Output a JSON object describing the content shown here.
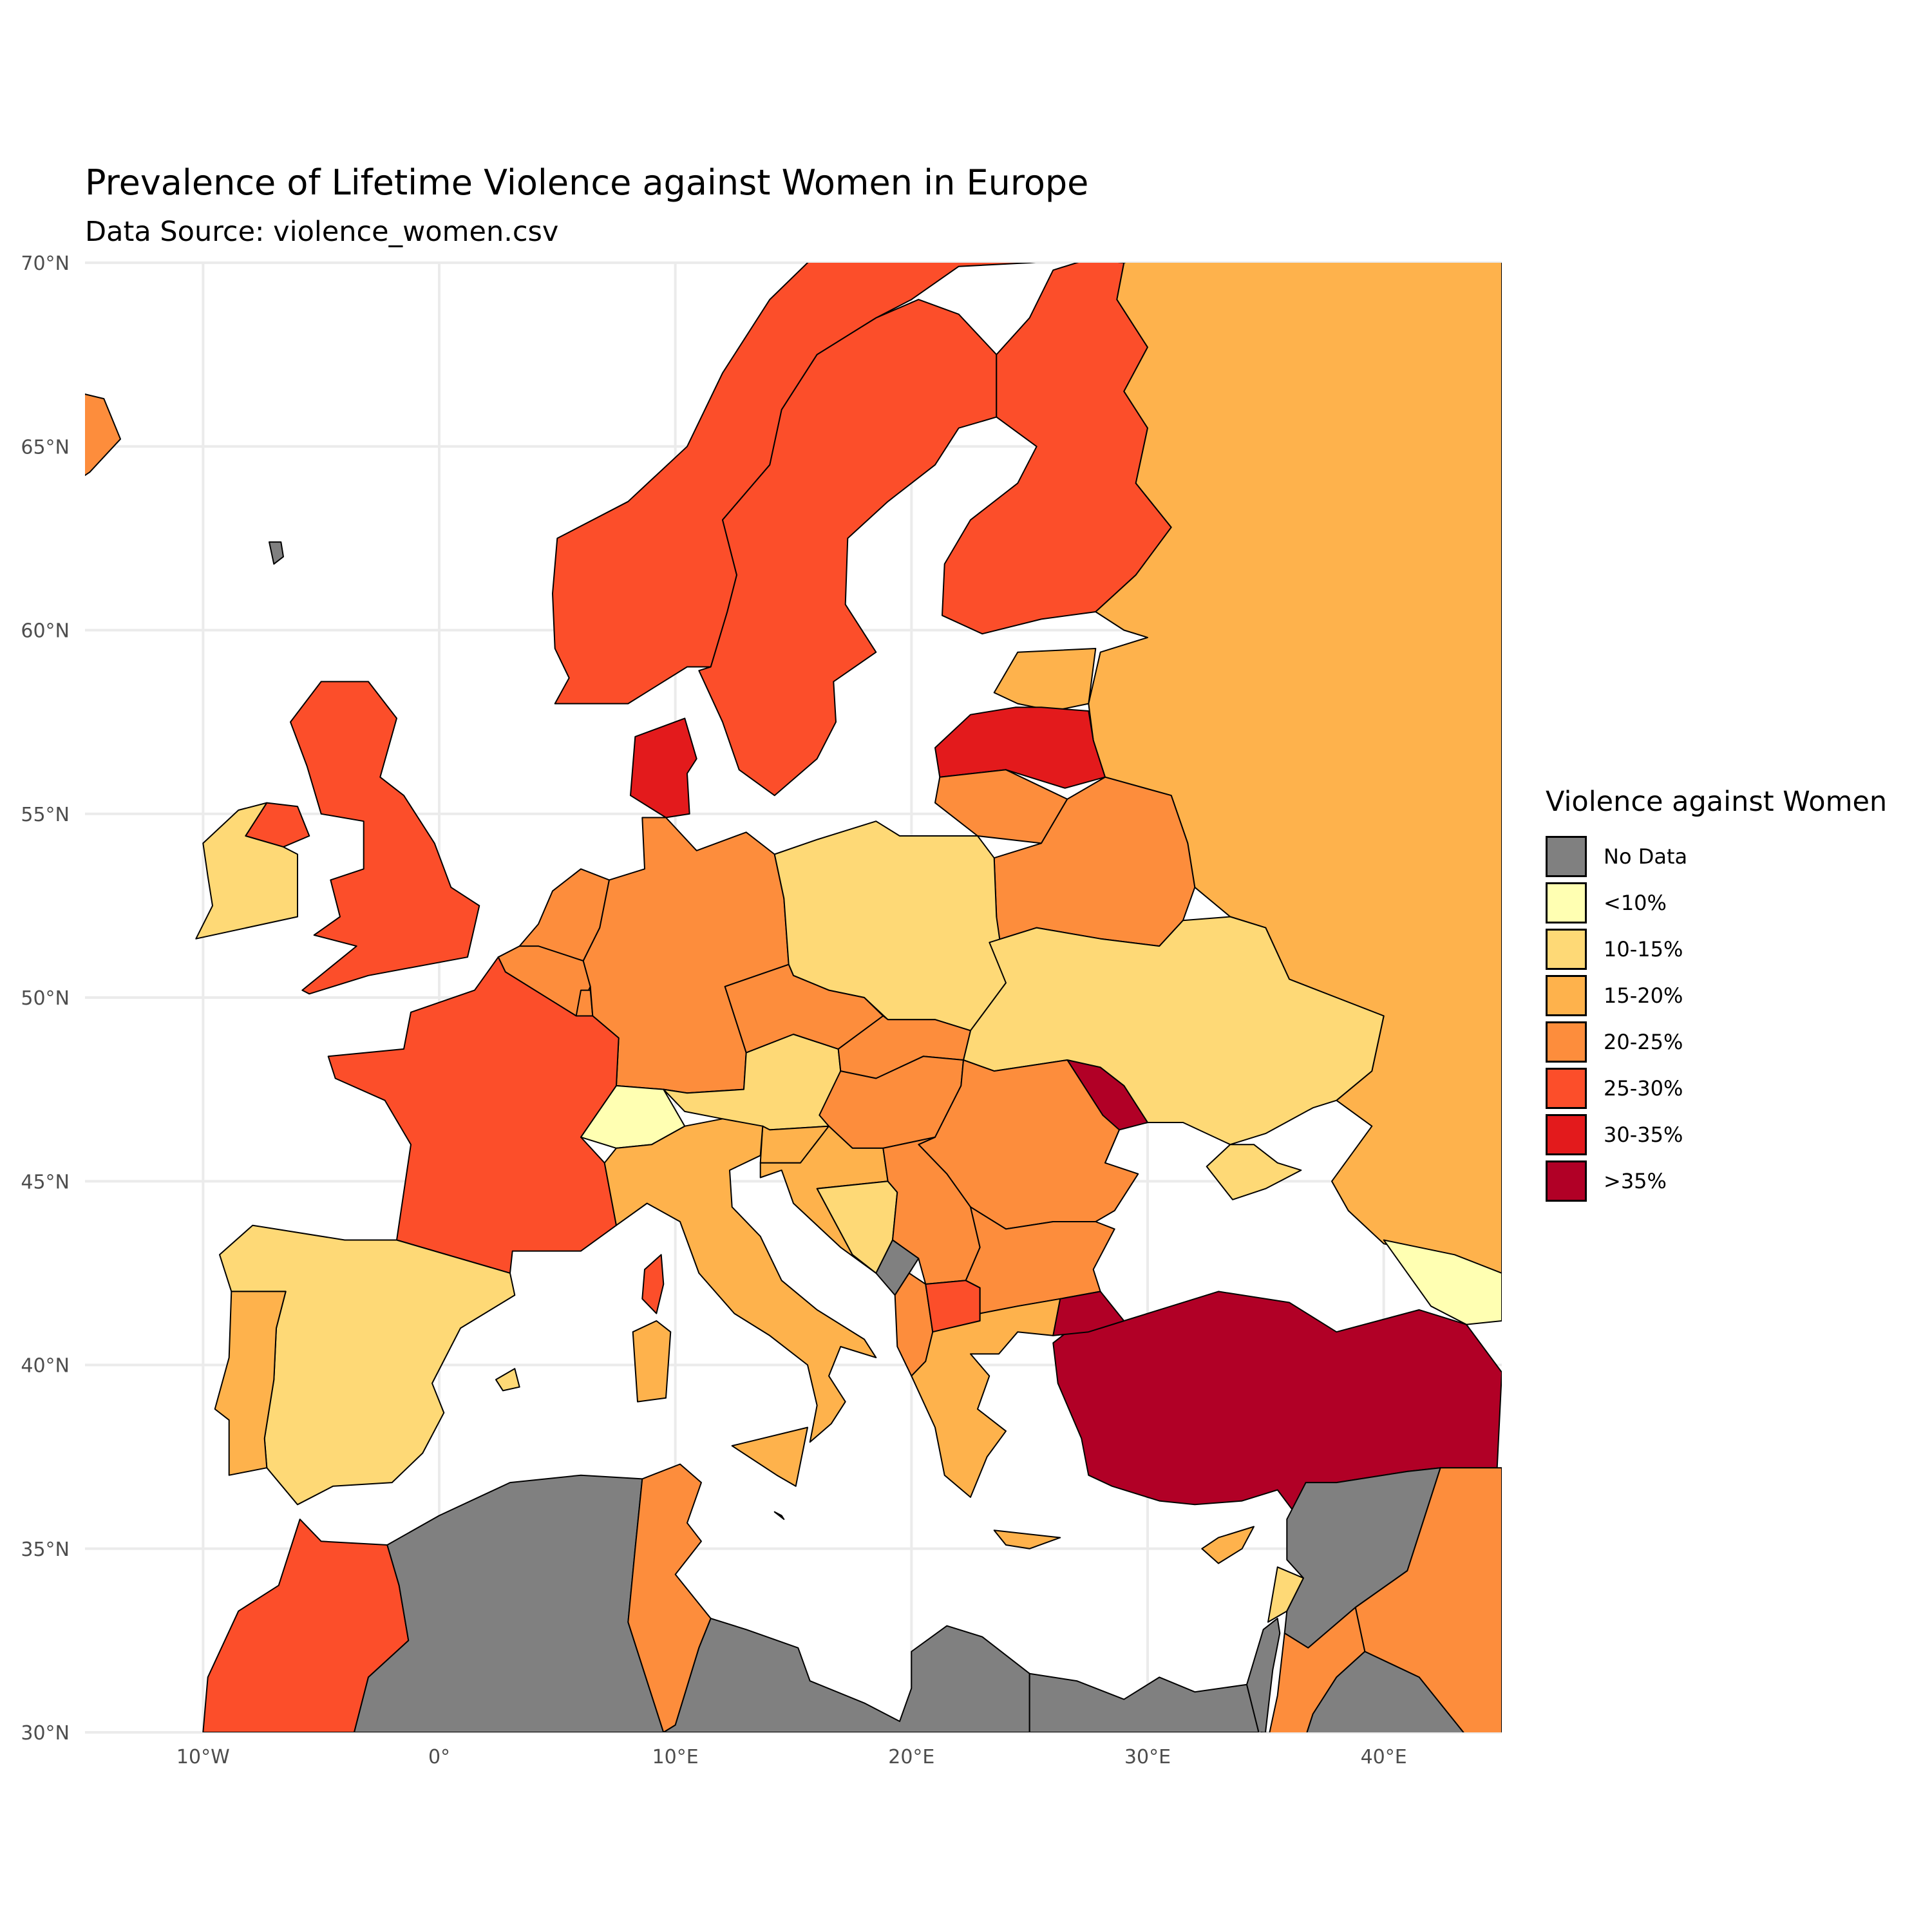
{
  "title": "Prevalence of Lifetime Violence against Women in Europe",
  "subtitle": "Data Source: violence_women.csv",
  "axes": {
    "x_ticks": [
      "10°W",
      "0°",
      "10°E",
      "20°E",
      "30°E",
      "40°E"
    ],
    "y_ticks": [
      "70°N",
      "65°N",
      "60°N",
      "55°N",
      "50°N",
      "45°N",
      "40°N",
      "35°N",
      "30°N"
    ],
    "xlim": [
      -15,
      45
    ],
    "ylim": [
      30,
      70
    ]
  },
  "legend": {
    "title": "Violence against Women",
    "items": [
      {
        "label": "No Data",
        "color": "#808080"
      },
      {
        "label": "<10%",
        "color": "#ffffb2"
      },
      {
        "label": "10-15%",
        "color": "#fed976"
      },
      {
        "label": "15-20%",
        "color": "#feb24c"
      },
      {
        "label": "20-25%",
        "color": "#fd8d3c"
      },
      {
        "label": "25-30%",
        "color": "#fc4e2a"
      },
      {
        "label": "30-35%",
        "color": "#e31a1c"
      },
      {
        "label": ">35%",
        "color": "#b10026"
      }
    ]
  },
  "colors": {
    "no_data": "#808080",
    "lt10": "#ffffb2",
    "c10_15": "#fed976",
    "c15_20": "#feb24c",
    "c20_25": "#fd8d3c",
    "c25_30": "#fc4e2a",
    "c30_35": "#e31a1c",
    "gt35": "#b10026",
    "grid": "#ebebeb"
  },
  "regions": [
    {
      "name": "Iceland",
      "class": "20-25%"
    },
    {
      "name": "Faroe Islands",
      "class": "No Data"
    },
    {
      "name": "Norway",
      "class": "25-30%"
    },
    {
      "name": "Sweden",
      "class": "25-30%"
    },
    {
      "name": "Finland",
      "class": "25-30%"
    },
    {
      "name": "Russia",
      "class": "15-20%"
    },
    {
      "name": "Estonia",
      "class": "15-20%"
    },
    {
      "name": "Latvia",
      "class": "30-35%"
    },
    {
      "name": "Lithuania",
      "class": "20-25%"
    },
    {
      "name": "Belarus",
      "class": "20-25%"
    },
    {
      "name": "United Kingdom",
      "class": "25-30%"
    },
    {
      "name": "Northern Ireland",
      "class": "25-30%"
    },
    {
      "name": "Ireland",
      "class": "10-15%"
    },
    {
      "name": "Denmark",
      "class": "30-35%"
    },
    {
      "name": "Netherlands",
      "class": "20-25%"
    },
    {
      "name": "Belgium",
      "class": "20-25%"
    },
    {
      "name": "Luxembourg",
      "class": "20-25%"
    },
    {
      "name": "Germany",
      "class": "20-25%"
    },
    {
      "name": "Poland",
      "class": "10-15%"
    },
    {
      "name": "Ukraine",
      "class": "10-15%"
    },
    {
      "name": "Moldova",
      "class": ">35%"
    },
    {
      "name": "France",
      "class": "25-30%"
    },
    {
      "name": "Switzerland",
      "class": "<10%"
    },
    {
      "name": "Austria",
      "class": "10-15%"
    },
    {
      "name": "Czechia",
      "class": "20-25%"
    },
    {
      "name": "Slovakia",
      "class": "20-25%"
    },
    {
      "name": "Hungary",
      "class": "20-25%"
    },
    {
      "name": "Romania",
      "class": "20-25%"
    },
    {
      "name": "Slovenia",
      "class": "15-20%"
    },
    {
      "name": "Croatia",
      "class": "15-20%"
    },
    {
      "name": "Bosnia and Herzegovina",
      "class": "10-15%"
    },
    {
      "name": "Serbia",
      "class": "20-25%"
    },
    {
      "name": "Montenegro",
      "class": "No Data"
    },
    {
      "name": "Albania",
      "class": "20-25%"
    },
    {
      "name": "North Macedonia",
      "class": "25-30%"
    },
    {
      "name": "Bulgaria",
      "class": "20-25%"
    },
    {
      "name": "Greece",
      "class": "15-20%"
    },
    {
      "name": "Turkey",
      "class": ">35%"
    },
    {
      "name": "Georgia",
      "class": "<10%"
    },
    {
      "name": "Cyprus",
      "class": "15-20%"
    },
    {
      "name": "Italy",
      "class": "15-20%"
    },
    {
      "name": "Sicily",
      "class": "15-20%"
    },
    {
      "name": "Sardinia",
      "class": "15-20%"
    },
    {
      "name": "Corsica",
      "class": "25-30%"
    },
    {
      "name": "Spain",
      "class": "10-15%"
    },
    {
      "name": "Portugal",
      "class": "15-20%"
    },
    {
      "name": "Balearic Islands",
      "class": "10-15%"
    },
    {
      "name": "Malta",
      "class": "15-20%"
    },
    {
      "name": "Crete",
      "class": "15-20%"
    },
    {
      "name": "Crimea",
      "class": "10-15%"
    },
    {
      "name": "Morocco",
      "class": "25-30%"
    },
    {
      "name": "Algeria",
      "class": "No Data"
    },
    {
      "name": "Tunisia",
      "class": "20-25%"
    },
    {
      "name": "Libya",
      "class": "No Data"
    },
    {
      "name": "Egypt",
      "class": "No Data"
    },
    {
      "name": "Syria",
      "class": "No Data"
    },
    {
      "name": "Iraq",
      "class": "20-25%"
    },
    {
      "name": "Jordan",
      "class": "20-25%"
    },
    {
      "name": "Saudi Arabia",
      "class": "No Data"
    },
    {
      "name": "Israel",
      "class": "No Data"
    },
    {
      "name": "Lebanon",
      "class": "10-15%"
    }
  ]
}
